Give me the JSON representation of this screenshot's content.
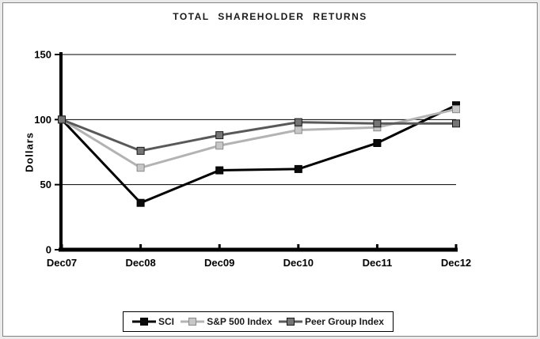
{
  "chart_data": {
    "type": "line",
    "title": "TOTAL SHAREHOLDER RETURNS",
    "xlabel": "",
    "ylabel": "Dollars",
    "categories": [
      "Dec07",
      "Dec08",
      "Dec09",
      "Dec10",
      "Dec11",
      "Dec12"
    ],
    "yticks": [
      0,
      50,
      100,
      150
    ],
    "ylim": [
      0,
      150
    ],
    "grid": "horizontal",
    "legend_position": "bottom",
    "series": [
      {
        "name": "SCI",
        "color": "#000000",
        "marker_fill": "#0a0a0a",
        "marker_border": "#000000",
        "values": [
          100,
          36,
          61,
          62,
          82,
          111
        ]
      },
      {
        "name": "S&P 500 Index",
        "color": "#b3b3b3",
        "marker_fill": "#c7c7c7",
        "marker_border": "#8a8a8a",
        "values": [
          100,
          63,
          80,
          92,
          94,
          108
        ]
      },
      {
        "name": "Peer Group Index",
        "color": "#595959",
        "marker_fill": "#757575",
        "marker_border": "#1a1a1a",
        "values": [
          100,
          76,
          88,
          98,
          97,
          97
        ]
      }
    ]
  }
}
